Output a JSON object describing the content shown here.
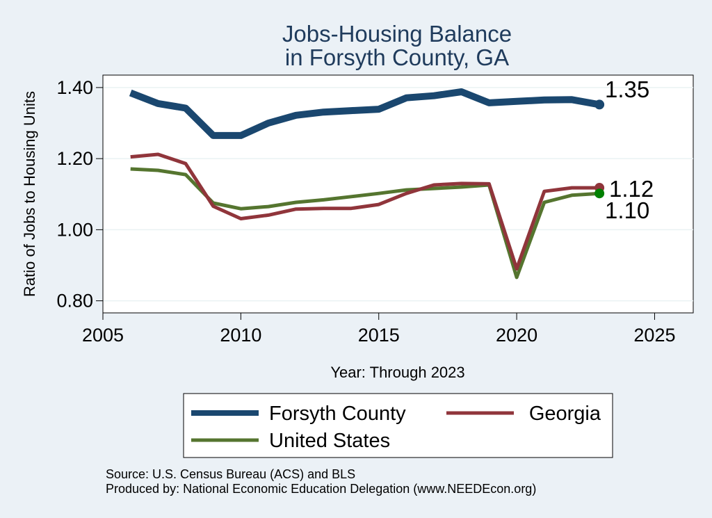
{
  "chart_data": {
    "type": "line",
    "title": [
      "Jobs-Housing Balance",
      "in Forsyth County, GA"
    ],
    "xlabel": "Year: Through 2023",
    "ylabel": "Ratio of Jobs to Housing Units",
    "xlim": [
      2005,
      2026.4
    ],
    "ylim": [
      0.766,
      1.435
    ],
    "xticks": [
      2005,
      2010,
      2015,
      2020,
      2025
    ],
    "yticks": [
      0.8,
      1.0,
      1.2,
      1.4
    ],
    "ytick_labels": [
      "0.80",
      "1.00",
      "1.20",
      "1.40"
    ],
    "grid": true,
    "legend_position": "bottom",
    "series": [
      {
        "name": "Forsyth County",
        "color": "#1a476f",
        "x": [
          2006,
          2007,
          2008,
          2009,
          2010,
          2011,
          2012,
          2013,
          2014,
          2015,
          2016,
          2017,
          2018,
          2019,
          2020,
          2021,
          2022,
          2023
        ],
        "values": [
          1.385,
          1.355,
          1.342,
          1.265,
          1.265,
          1.3,
          1.322,
          1.331,
          1.335,
          1.339,
          1.371,
          1.377,
          1.388,
          1.357,
          1.361,
          1.365,
          1.366,
          1.352
        ],
        "end_label": "1.35"
      },
      {
        "name": "Georgia",
        "color": "#90353b",
        "x": [
          2006,
          2007,
          2008,
          2009,
          2010,
          2011,
          2012,
          2013,
          2014,
          2015,
          2016,
          2017,
          2018,
          2019,
          2020,
          2021,
          2022,
          2023
        ],
        "values": [
          1.205,
          1.212,
          1.186,
          1.066,
          1.031,
          1.041,
          1.058,
          1.06,
          1.06,
          1.071,
          1.102,
          1.126,
          1.13,
          1.129,
          0.89,
          1.108,
          1.118,
          1.118
        ],
        "end_label": "1.12"
      },
      {
        "name": "United States",
        "color": "#55752f",
        "x": [
          2006,
          2007,
          2008,
          2009,
          2010,
          2011,
          2012,
          2013,
          2014,
          2015,
          2016,
          2017,
          2018,
          2019,
          2020,
          2021,
          2022,
          2023
        ],
        "values": [
          1.171,
          1.167,
          1.155,
          1.075,
          1.059,
          1.065,
          1.077,
          1.084,
          1.093,
          1.102,
          1.112,
          1.116,
          1.12,
          1.126,
          0.866,
          1.077,
          1.097,
          1.102
        ],
        "end_label": "1.10"
      }
    ],
    "end_marker_colors": [
      "#1a476f",
      "#90353b",
      "#008000"
    ]
  },
  "source_lines": [
    "Source: U.S. Census Bureau (ACS) and BLS",
    "Produced by: National Economic Education Delegation (www.NEEDEcon.org)"
  ]
}
